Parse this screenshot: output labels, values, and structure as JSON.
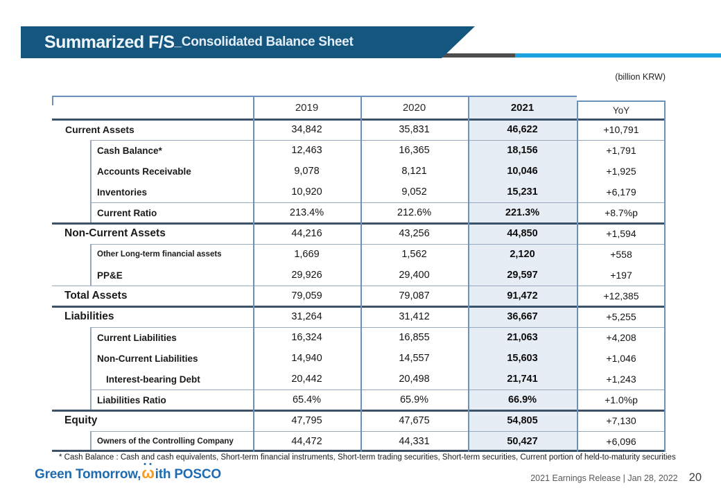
{
  "slide": {
    "title_main": "Summarized F/S",
    "title_sub": "_Consolidated Balance Sheet",
    "unit_note": "(billion KRW)",
    "footnote": "* Cash Balance : Cash and cash equivalents, Short-term financial instruments, Short-term trading securities, Short-term securities, Current portion of held-to-maturity securities",
    "footer": {
      "logo": {
        "prefix": "Green Tomorrow, ",
        "w_glyph": "ω",
        "suffix": "ith POSCO"
      },
      "release_info": "2021 Earnings Release | Jan 28, 2022",
      "page_number": "20"
    },
    "colors": {
      "banner_blue": "#14567e",
      "accent_bar_blue": "#1aa3de",
      "accent_bar_gray": "#4d4d4d",
      "highlight_column_bg": "#e7edf5",
      "logo_blue": "#1e6bb2",
      "logo_orange": "#f59b20"
    }
  },
  "table": {
    "columns": [
      "",
      "2019",
      "2020",
      "2021",
      "YoY"
    ],
    "highlight_column": "2021",
    "rows": [
      {
        "label": "Current Assets",
        "variant": "section-sm",
        "values": [
          "34,842",
          "35,831",
          "46,622",
          "+10,791"
        ]
      },
      {
        "label": "Cash Balance*",
        "variant": "sub",
        "values": [
          "12,463",
          "16,365",
          "18,156",
          "+1,791"
        ]
      },
      {
        "label": "Accounts Receivable",
        "variant": "sub",
        "values": [
          "9,078",
          "8,121",
          "10,046",
          "+1,925"
        ]
      },
      {
        "label": "Inventories",
        "variant": "sub",
        "values": [
          "10,920",
          "9,052",
          "15,231",
          "+6,179"
        ]
      },
      {
        "label": "Current Ratio",
        "variant": "sub",
        "values": [
          "213.4%",
          "212.6%",
          "221.3%",
          "+8.7%p"
        ]
      },
      {
        "label": "Non-Current Assets",
        "variant": "section",
        "values": [
          "44,216",
          "43,256",
          "44,850",
          "+1,594"
        ]
      },
      {
        "label": "Other Long-term financial assets",
        "variant": "sub-sm",
        "values": [
          "1,669",
          "1,562",
          "2,120",
          "+558"
        ]
      },
      {
        "label": "PP&E",
        "variant": "sub",
        "values": [
          "29,926",
          "29,400",
          "29,597",
          "+197"
        ]
      },
      {
        "label": "Total Assets",
        "variant": "section",
        "values": [
          "79,059",
          "79,087",
          "91,472",
          "+12,385"
        ]
      },
      {
        "label": "Liabilities",
        "variant": "section",
        "values": [
          "31,264",
          "31,412",
          "36,667",
          "+5,255"
        ]
      },
      {
        "label": "Current Liabilities",
        "variant": "sub",
        "values": [
          "16,324",
          "16,855",
          "21,063",
          "+4,208"
        ]
      },
      {
        "label": "Non-Current Liabilities",
        "variant": "sub",
        "values": [
          "14,940",
          "14,557",
          "15,603",
          "+1,046"
        ]
      },
      {
        "label": "Interest-bearing Debt",
        "variant": "subsub",
        "values": [
          "20,442",
          "20,498",
          "21,741",
          "+1,243"
        ]
      },
      {
        "label": "Liabilities Ratio",
        "variant": "sub",
        "values": [
          "65.4%",
          "65.9%",
          "66.9%",
          "+1.0%p"
        ]
      },
      {
        "label": "Equity",
        "variant": "section",
        "values": [
          "47,795",
          "47,675",
          "54,805",
          "+7,130"
        ]
      },
      {
        "label": "Owners of the Controlling Company",
        "variant": "sub-sm",
        "values": [
          "44,472",
          "44,331",
          "50,427",
          "+6,096"
        ]
      }
    ]
  }
}
